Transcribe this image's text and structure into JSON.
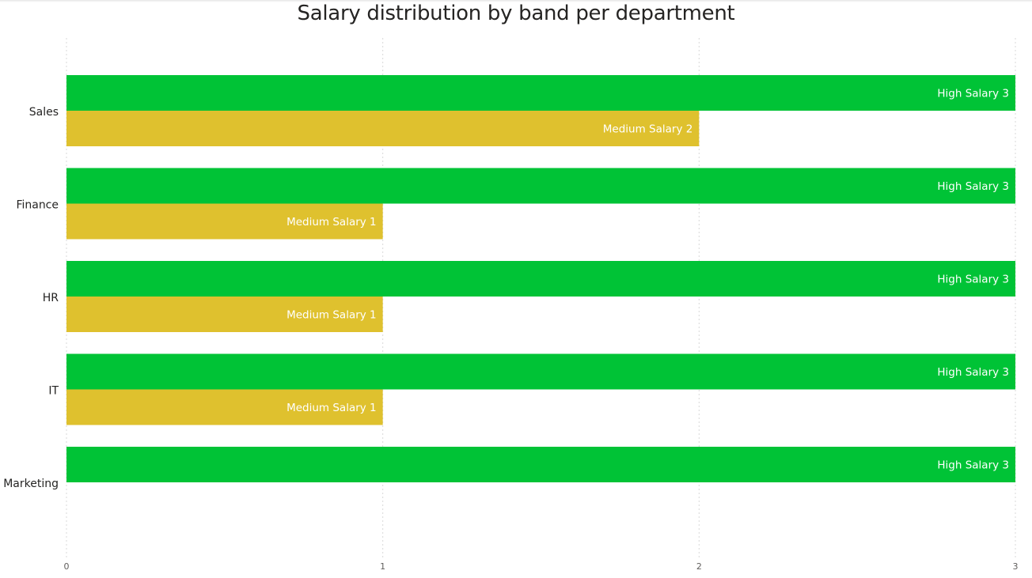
{
  "chart_data": {
    "type": "bar",
    "orientation": "horizontal",
    "title": "Salary distribution by band per department",
    "categories": [
      "Sales",
      "Finance",
      "HR",
      "IT",
      "Marketing"
    ],
    "series": [
      {
        "name": "High Salary",
        "values": [
          3,
          3,
          3,
          3,
          3
        ],
        "color": "#00c336"
      },
      {
        "name": "Medium Salary",
        "values": [
          2,
          1,
          1,
          1,
          null
        ],
        "color": "#dfc12e"
      }
    ],
    "xlim": [
      0,
      3
    ],
    "xticks": [
      0,
      1,
      2,
      3
    ],
    "grid": true,
    "legend": "none",
    "data_label_color": "#ffffff"
  }
}
